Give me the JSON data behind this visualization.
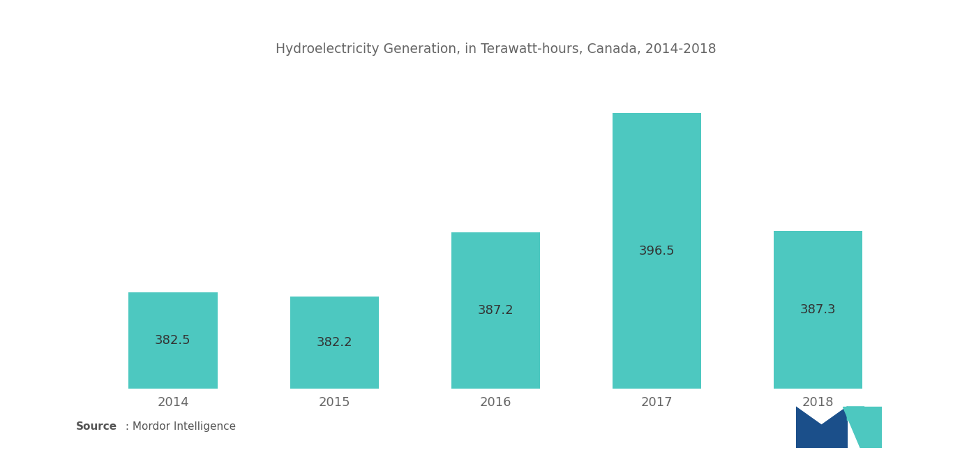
{
  "title": "Hydroelectricity Generation, in Terawatt-hours, Canada, 2014-2018",
  "categories": [
    "2014",
    "2015",
    "2016",
    "2017",
    "2018"
  ],
  "values": [
    382.5,
    382.2,
    387.2,
    396.5,
    387.3
  ],
  "bar_color": "#4DC8C0",
  "label_color": "#333333",
  "background_color": "#ffffff",
  "title_fontsize": 13.5,
  "label_fontsize": 13,
  "tick_fontsize": 13,
  "source_text_bold": "Source",
  "source_text_regular": " : Mordor Intelligence",
  "ylim_min": 375,
  "ylim_max": 400
}
